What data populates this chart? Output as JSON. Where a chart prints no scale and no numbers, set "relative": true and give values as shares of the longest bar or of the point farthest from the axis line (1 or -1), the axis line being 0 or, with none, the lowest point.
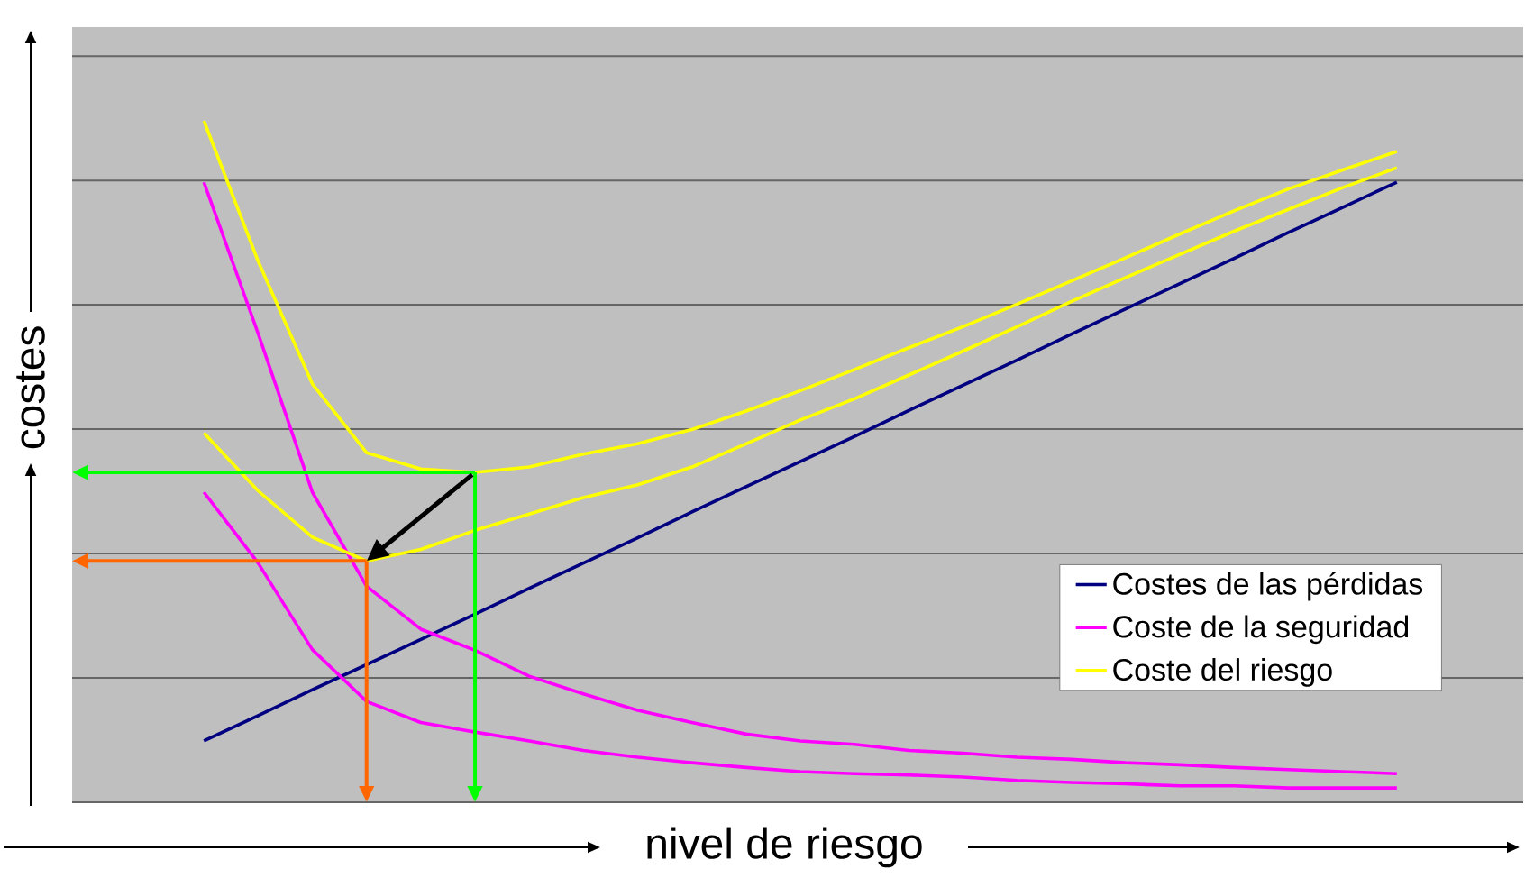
{
  "chart_data": {
    "type": "line",
    "xlabel": "nivel de riesgo",
    "ylabel": "costes",
    "relative": true,
    "grid": "y",
    "legend": "bottom right",
    "categories": [
      null,
      null,
      null,
      null,
      null,
      null,
      null,
      null,
      null,
      null,
      null,
      null,
      null,
      null,
      null,
      null,
      null,
      null,
      null,
      null,
      null,
      null,
      null
    ],
    "series": [
      {
        "name": "Costes de las pérdidas",
        "color": "#000080",
        "values": [
          0.09,
          0.127,
          0.165,
          0.202,
          0.239,
          0.276,
          0.314,
          0.351,
          0.388,
          0.426,
          0.463,
          0.5,
          0.537,
          0.575,
          0.612,
          0.649,
          0.687,
          0.724,
          0.761,
          0.798,
          0.836,
          0.873,
          0.91
        ]
      },
      {
        "name": "Coste de la seguridad",
        "color": "#ff00ff",
        "values": [
          0.91,
          0.688,
          0.455,
          0.317,
          0.254,
          0.223,
          0.185,
          0.159,
          0.135,
          0.117,
          0.1,
          0.09,
          0.085,
          0.076,
          0.072,
          0.066,
          0.063,
          0.058,
          0.055,
          0.051,
          0.048,
          0.045,
          0.042
        ]
      },
      {
        "color": "#ff00ff",
        "values": [
          0.455,
          0.351,
          0.224,
          0.148,
          0.117,
          0.103,
          0.09,
          0.076,
          0.066,
          0.058,
          0.051,
          0.045,
          0.042,
          0.04,
          0.037,
          0.032,
          0.029,
          0.027,
          0.024,
          0.024,
          0.021,
          0.021,
          0.021
        ]
      },
      {
        "name": "Coste del riesgo",
        "color": "#ffff00",
        "values": [
          1.0,
          0.794,
          0.614,
          0.513,
          0.489,
          0.484,
          0.492,
          0.511,
          0.526,
          0.547,
          0.574,
          0.604,
          0.635,
          0.667,
          0.698,
          0.731,
          0.765,
          0.799,
          0.834,
          0.868,
          0.9,
          0.928,
          0.955
        ]
      },
      {
        "color": "#ffff00",
        "values": [
          0.542,
          0.457,
          0.389,
          0.354,
          0.371,
          0.399,
          0.423,
          0.447,
          0.466,
          0.492,
          0.526,
          0.561,
          0.592,
          0.627,
          0.662,
          0.698,
          0.735,
          0.77,
          0.804,
          0.838,
          0.87,
          0.902,
          0.931
        ]
      }
    ]
  }
}
